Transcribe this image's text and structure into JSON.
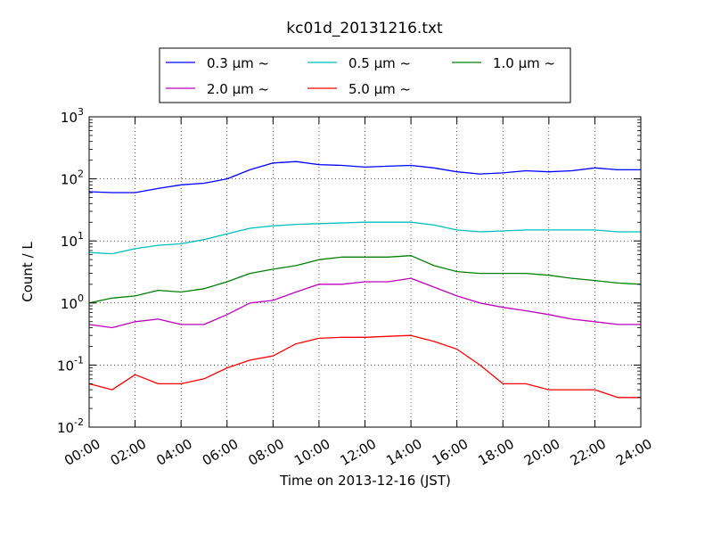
{
  "chart_data": {
    "type": "line",
    "title": "kc01d_20131216.txt",
    "xlabel": "Time on 2013-12-16 (JST)",
    "ylabel": "Count / L",
    "yscale": "log",
    "ylim": [
      0.01,
      1000
    ],
    "y_ticks": [
      {
        "value": 0.01,
        "base": "10",
        "exp": "-2"
      },
      {
        "value": 0.1,
        "base": "10",
        "exp": "-1"
      },
      {
        "value": 1,
        "base": "10",
        "exp": "0"
      },
      {
        "value": 10,
        "base": "10",
        "exp": "1"
      },
      {
        "value": 100,
        "base": "10",
        "exp": "2"
      },
      {
        "value": 1000,
        "base": "10",
        "exp": "3"
      }
    ],
    "x_ticks": [
      "00:00",
      "02:00",
      "04:00",
      "06:00",
      "08:00",
      "10:00",
      "12:00",
      "14:00",
      "16:00",
      "18:00",
      "20:00",
      "22:00",
      "24:00"
    ],
    "xlim": [
      "00:00",
      "24:00"
    ],
    "grid": true,
    "legend_position": "top-center",
    "x": [
      "00:00",
      "01:00",
      "02:00",
      "03:00",
      "04:00",
      "05:00",
      "06:00",
      "07:00",
      "08:00",
      "09:00",
      "10:00",
      "11:00",
      "12:00",
      "13:00",
      "14:00",
      "15:00",
      "16:00",
      "17:00",
      "18:00",
      "19:00",
      "20:00",
      "21:00",
      "22:00",
      "23:00",
      "24:00"
    ],
    "series": [
      {
        "name": "0.3 μm ~",
        "color": "#0000ff",
        "values": [
          62,
          60,
          60,
          70,
          80,
          85,
          100,
          140,
          180,
          190,
          170,
          165,
          155,
          160,
          165,
          150,
          130,
          120,
          125,
          135,
          130,
          135,
          150,
          140,
          140
        ]
      },
      {
        "name": "0.5 μm ~",
        "color": "#00bfbf",
        "values": [
          6.5,
          6.2,
          7.5,
          8.5,
          9.0,
          10.5,
          13,
          16,
          17.5,
          18.5,
          19,
          19.5,
          20,
          20,
          20,
          18,
          15,
          14,
          14.5,
          15,
          15,
          15,
          15,
          14,
          14
        ]
      },
      {
        "name": "1.0 μm ~",
        "color": "#008000",
        "values": [
          1.0,
          1.2,
          1.3,
          1.6,
          1.5,
          1.7,
          2.2,
          3.0,
          3.5,
          4.0,
          5.0,
          5.5,
          5.5,
          5.5,
          5.8,
          4.0,
          3.2,
          3.0,
          3.0,
          3.0,
          2.8,
          2.5,
          2.3,
          2.1,
          2.0
        ]
      },
      {
        "name": "2.0 μm ~",
        "color": "#bf00bf",
        "values": [
          0.45,
          0.4,
          0.5,
          0.55,
          0.45,
          0.45,
          0.65,
          1.0,
          1.1,
          1.5,
          2.0,
          2.0,
          2.2,
          2.2,
          2.5,
          1.8,
          1.3,
          1.0,
          0.85,
          0.75,
          0.65,
          0.55,
          0.5,
          0.45,
          0.45
        ]
      },
      {
        "name": "5.0 μm ~",
        "color": "#ff0000",
        "values": [
          0.05,
          0.04,
          0.07,
          0.05,
          0.05,
          0.06,
          0.09,
          0.12,
          0.14,
          0.22,
          0.27,
          0.28,
          0.28,
          0.29,
          0.3,
          0.24,
          0.18,
          0.1,
          0.05,
          0.05,
          0.04,
          0.04,
          0.04,
          0.03,
          0.03
        ]
      }
    ]
  }
}
